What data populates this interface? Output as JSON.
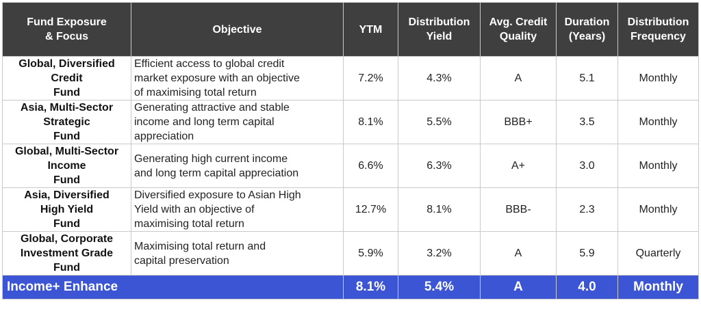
{
  "headers": {
    "fund": "Fund  Exposure\n& Focus",
    "objective": "Objective",
    "ytm": "YTM",
    "distribution_yield": "Distribution\nYield",
    "credit_quality": "Avg. Credit\nQuality",
    "duration": "Duration\n(Years)",
    "frequency": "Distribution\nFrequency"
  },
  "rows": [
    {
      "fund": "Global, Diversified\nCredit\nFund",
      "objective": "Efficient access to global credit\nmarket exposure with an objective\nof maximising total return",
      "ytm": "7.2%",
      "dist_yield": "4.3%",
      "quality": "A",
      "duration": "5.1",
      "frequency": "Monthly"
    },
    {
      "fund": "Asia, Multi-Sector\nStrategic\nFund",
      "objective": "Generating attractive and stable\nincome and long term capital\nappreciation",
      "ytm": "8.1%",
      "dist_yield": "5.5%",
      "quality": "BBB+",
      "duration": "3.5",
      "frequency": "Monthly"
    },
    {
      "fund": "Global, Multi-Sector\nIncome\nFund",
      "objective": "Generating high current income\nand long term capital appreciation",
      "ytm": "6.6%",
      "dist_yield": "6.3%",
      "quality": "A+",
      "duration": "3.0",
      "frequency": "Monthly"
    },
    {
      "fund": "Asia, Diversified\nHigh Yield\nFund",
      "objective": "Diversified exposure to Asian High\nYield with an objective of\nmaximising total return",
      "ytm": "12.7%",
      "dist_yield": "8.1%",
      "quality": "BBB-",
      "duration": "2.3",
      "frequency": "Monthly"
    },
    {
      "fund": "Global, Corporate\nInvestment Grade\nFund",
      "objective": "Maximising total return and\ncapital preservation",
      "ytm": "5.9%",
      "dist_yield": "3.2%",
      "quality": "A",
      "duration": "5.9",
      "frequency": "Quarterly"
    }
  ],
  "summary": {
    "name": "Income+ Enhance",
    "ytm": "8.1%",
    "dist_yield": "5.4%",
    "quality": "A",
    "duration": "4.0",
    "frequency": "Monthly"
  },
  "colors": {
    "header_bg": "#3f3f3f",
    "summary_bg": "#3b55d4"
  }
}
